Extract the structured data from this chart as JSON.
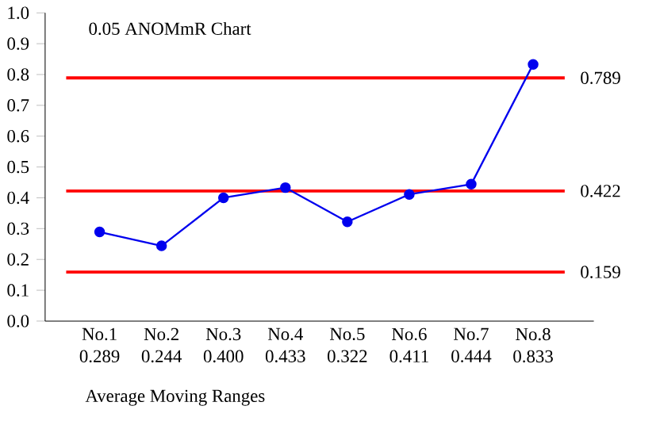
{
  "chart_data": {
    "type": "line",
    "title": "0.05 ANOMmR Chart",
    "xlabel": "Average Moving Ranges",
    "categories": [
      "No.1",
      "No.2",
      "No.3",
      "No.4",
      "No.5",
      "No.6",
      "No.7",
      "No.8"
    ],
    "values": [
      0.289,
      0.244,
      0.4,
      0.433,
      0.322,
      0.411,
      0.444,
      0.833
    ],
    "value_labels": [
      "0.289",
      "0.244",
      "0.400",
      "0.433",
      "0.322",
      "0.411",
      "0.444",
      "0.833"
    ],
    "color": "#0000ee",
    "marker": "circle",
    "line_style": "solid",
    "ylim": [
      0,
      1.0
    ],
    "yticks": [
      {
        "value": 0,
        "label": "0.0"
      },
      0.1,
      0.2,
      0.3,
      0.4,
      0.5,
      0.6,
      0.7,
      0.8,
      0.9,
      {
        "value": 1.0,
        "label": "1.0"
      }
    ],
    "ref_lines": [
      {
        "axis": "y",
        "value": 0.789,
        "label": "0.789",
        "color": "#ff0000"
      },
      {
        "axis": "y",
        "value": 0.422,
        "label": "0.422",
        "color": "#ff0000"
      },
      {
        "axis": "y",
        "value": 0.159,
        "label": "0.159",
        "color": "#ff0000"
      }
    ]
  }
}
